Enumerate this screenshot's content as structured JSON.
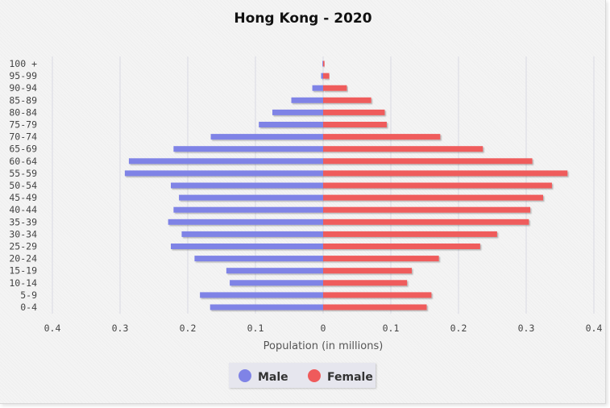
{
  "chart_data": {
    "type": "bar",
    "orientation": "horizontal-population-pyramid",
    "title": "Hong Kong - 2020",
    "xlabel": "Population (in millions)",
    "xlim": [
      -0.4,
      0.4
    ],
    "x_ticks": [
      "0.4",
      "0.3",
      "0.2",
      "0.1",
      "0",
      "0.1",
      "0.2",
      "0.3",
      "0.4"
    ],
    "grid": true,
    "legend_position": "bottom-center",
    "categories": [
      "100 +",
      "95-99",
      "90-94",
      "85-89",
      "80-84",
      "75-79",
      "70-74",
      "65-69",
      "60-64",
      "55-59",
      "50-54",
      "45-49",
      "40-44",
      "35-39",
      "30-34",
      "25-29",
      "20-24",
      "15-19",
      "10-14",
      "5-9",
      "0-4"
    ],
    "series": [
      {
        "name": "Male",
        "color": "#7f83e6",
        "values": [
          0.001,
          0.003,
          0.016,
          0.047,
          0.075,
          0.095,
          0.166,
          0.221,
          0.287,
          0.293,
          0.225,
          0.213,
          0.221,
          0.229,
          0.209,
          0.225,
          0.19,
          0.143,
          0.138,
          0.182,
          0.167
        ]
      },
      {
        "name": "Female",
        "color": "#ef5b5b",
        "values": [
          0.002,
          0.009,
          0.035,
          0.071,
          0.091,
          0.094,
          0.173,
          0.236,
          0.309,
          0.361,
          0.338,
          0.325,
          0.306,
          0.304,
          0.257,
          0.232,
          0.171,
          0.131,
          0.124,
          0.16,
          0.153
        ]
      }
    ]
  }
}
